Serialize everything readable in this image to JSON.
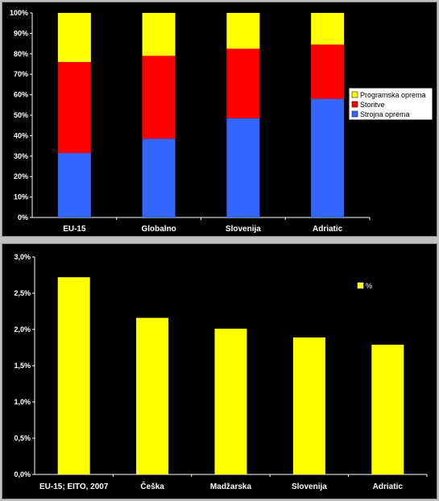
{
  "chart_data": [
    {
      "type": "bar",
      "stacked": true,
      "categories": [
        "EU-15",
        "Globalno",
        "Slovenija",
        "Adriatic"
      ],
      "yticks": [
        "0%",
        "10%",
        "20%",
        "30%",
        "40%",
        "50%",
        "60%",
        "70%",
        "80%",
        "90%",
        "100%"
      ],
      "ylim": [
        0,
        100
      ],
      "series": [
        {
          "name": "Strojna oprema",
          "color": "#3366ff",
          "values": [
            31.5,
            38.5,
            48.5,
            58
          ]
        },
        {
          "name": "Storitve",
          "color": "#ff0000",
          "values": [
            44.5,
            40.5,
            34,
            26.5
          ]
        },
        {
          "name": "Programska oprema",
          "color": "#ffff00",
          "values": [
            24,
            21,
            17.5,
            15.5
          ]
        }
      ],
      "legend_position": "right",
      "legend_order": [
        2,
        1,
        0
      ],
      "grid": false
    },
    {
      "type": "bar",
      "categories": [
        "EU-15; EITO, 2007",
        "Češka",
        "Madžarska",
        "Slovenija",
        "Adriatic"
      ],
      "yticks": [
        "0,0%",
        "0,5%",
        "1,0%",
        "1,5%",
        "2,0%",
        "2,5%",
        "3,0%"
      ],
      "ylim": [
        0,
        3.0
      ],
      "series": [
        {
          "name": "%",
          "color": "#ffff00",
          "values": [
            2.72,
            2.16,
            2.01,
            1.89,
            1.79
          ]
        }
      ],
      "legend_position": "top-right",
      "grid": false
    }
  ]
}
